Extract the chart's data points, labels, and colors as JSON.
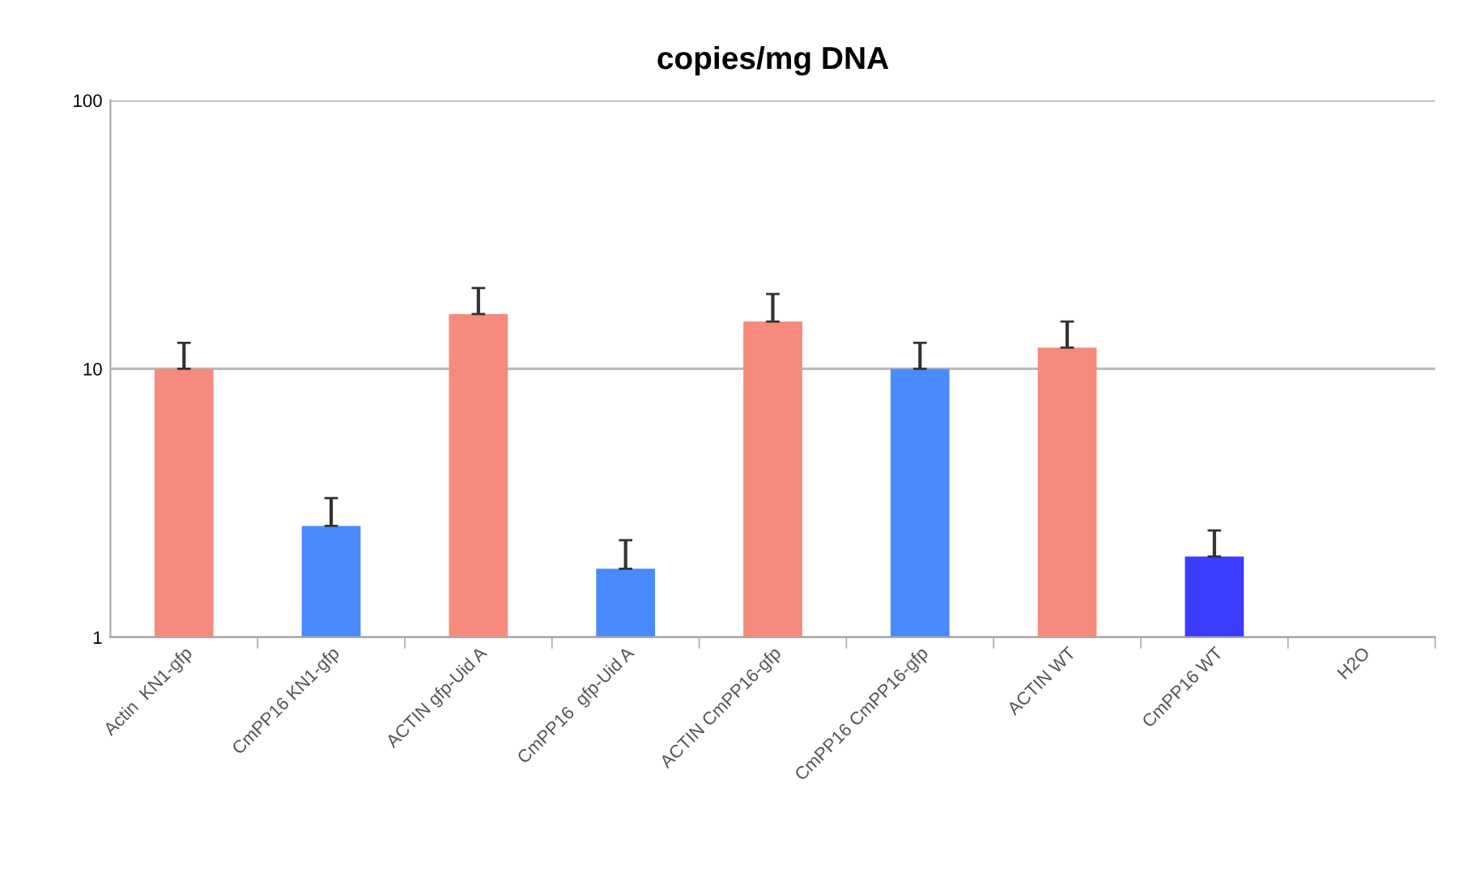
{
  "chart_data": {
    "type": "bar",
    "title": "copies/mg DNA",
    "categories": [
      "Actin  KN1-gfp",
      "CmPP16 KN1-gfp",
      "ACTIN gfp-Uid A",
      "CmPP16  gfp-Uid A",
      "ACTIN CmPP16-gfp",
      "CmPP16 CmPP16-gfp",
      "ACTIN WT",
      "CmPP16 WT",
      "H2O"
    ],
    "values": [
      10,
      2.6,
      16,
      1.8,
      15,
      10,
      12,
      2.0,
      null
    ],
    "colors": [
      "#f68a7c",
      "#4a8aff",
      "#f68a7c",
      "#4a8aff",
      "#f68a7c",
      "#4a8aff",
      "#f68a7c",
      "#3c3cff",
      null
    ],
    "errors": [
      [
        10,
        12.5
      ],
      [
        2.6,
        3.3
      ],
      [
        16,
        20
      ],
      [
        1.8,
        2.3
      ],
      [
        15,
        19
      ],
      [
        10,
        12.5
      ],
      [
        12,
        15
      ],
      [
        2.0,
        2.5
      ],
      null
    ],
    "log": "y",
    "ylim": [
      1,
      100
    ],
    "yticks": [
      1,
      10,
      100
    ],
    "grid": "y",
    "legend": false
  }
}
